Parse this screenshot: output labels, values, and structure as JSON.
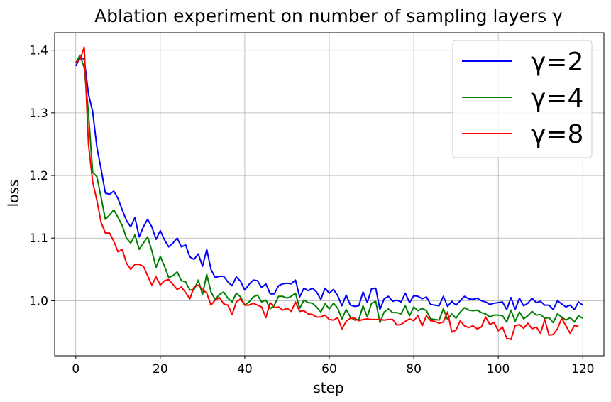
{
  "chart_data": {
    "type": "line",
    "title": "Ablation experiment on number of sampling layers γ",
    "xlabel": "step",
    "ylabel": "loss",
    "xlim": [
      -5,
      125
    ],
    "ylim": [
      0.912,
      1.428
    ],
    "xticks": [
      0,
      20,
      40,
      60,
      80,
      100,
      120
    ],
    "yticks": [
      1.0,
      1.1,
      1.2,
      1.3,
      1.4
    ],
    "xtick_labels": [
      "0",
      "20",
      "40",
      "60",
      "80",
      "100",
      "120"
    ],
    "ytick_labels": [
      "1.0",
      "1.1",
      "1.2",
      "1.3",
      "1.4"
    ],
    "grid": true,
    "legend_position": "top-right",
    "series": [
      {
        "name": "γ=2",
        "color": "#0000ff",
        "values": [
          1.375,
          1.388,
          1.386,
          1.33,
          1.302,
          1.245,
          1.21,
          1.172,
          1.17,
          1.175,
          1.163,
          1.145,
          1.128,
          1.118,
          1.133,
          1.102,
          1.118,
          1.13,
          1.118,
          1.098,
          1.112,
          1.097,
          1.086,
          1.092,
          1.1,
          1.086,
          1.089,
          1.07,
          1.066,
          1.075,
          1.055,
          1.082,
          1.05,
          1.037,
          1.039,
          1.039,
          1.03,
          1.024,
          1.038,
          1.031,
          1.017,
          1.026,
          1.033,
          1.032,
          1.021,
          1.027,
          1.011,
          1.011,
          1.024,
          1.027,
          1.028,
          1.027,
          1.033,
          1.006,
          1.02,
          1.016,
          1.02,
          1.014,
          1.002,
          1.02,
          1.012,
          1.018,
          1.008,
          0.992,
          1.009,
          0.993,
          0.991,
          0.992,
          1.014,
          0.997,
          1.019,
          1.02,
          0.986,
          1.003,
          1.007,
          0.999,
          1.001,
          0.998,
          1.012,
          0.997,
          1.008,
          1.007,
          1.003,
          1.006,
          0.994,
          0.993,
          0.992,
          1.007,
          0.991,
          0.999,
          0.993,
          1.0,
          1.007,
          1.003,
          1.002,
          1.004,
          1.0,
          0.998,
          0.994,
          0.996,
          0.997,
          0.998,
          0.986,
          1.005,
          0.986,
          1.004,
          0.992,
          0.996,
          1.004,
          0.997,
          0.999,
          0.993,
          0.993,
          0.986,
          1.0,
          0.995,
          0.99,
          0.993,
          0.986,
          0.998,
          0.993
        ]
      },
      {
        "name": "γ=4",
        "color": "#008000",
        "values": [
          1.38,
          1.392,
          1.372,
          1.3,
          1.205,
          1.198,
          1.165,
          1.13,
          1.137,
          1.145,
          1.133,
          1.12,
          1.1,
          1.092,
          1.105,
          1.082,
          1.092,
          1.102,
          1.08,
          1.053,
          1.071,
          1.055,
          1.037,
          1.04,
          1.046,
          1.032,
          1.03,
          1.017,
          1.018,
          1.033,
          1.01,
          1.042,
          1.014,
          1.002,
          1.01,
          1.014,
          1.004,
          0.998,
          1.012,
          1.006,
          0.993,
          0.998,
          1.006,
          1.009,
          0.998,
          1.001,
          0.987,
          0.993,
          1.007,
          1.007,
          1.004,
          1.007,
          1.012,
          0.988,
          1.001,
          0.997,
          0.996,
          0.99,
          0.982,
          0.995,
          0.987,
          0.996,
          0.988,
          0.971,
          0.986,
          0.974,
          0.969,
          0.97,
          0.992,
          0.974,
          0.996,
          0.999,
          0.965,
          0.982,
          0.987,
          0.981,
          0.981,
          0.979,
          0.992,
          0.976,
          0.99,
          0.984,
          0.988,
          0.984,
          0.971,
          0.97,
          0.969,
          0.987,
          0.97,
          0.979,
          0.972,
          0.982,
          0.989,
          0.985,
          0.984,
          0.985,
          0.981,
          0.979,
          0.974,
          0.977,
          0.977,
          0.976,
          0.966,
          0.985,
          0.967,
          0.982,
          0.971,
          0.976,
          0.983,
          0.977,
          0.978,
          0.972,
          0.973,
          0.965,
          0.979,
          0.974,
          0.969,
          0.973,
          0.966,
          0.976,
          0.972
        ]
      },
      {
        "name": "γ=8",
        "color": "#ff0000",
        "values": [
          1.38,
          1.385,
          1.405,
          1.25,
          1.19,
          1.16,
          1.125,
          1.108,
          1.108,
          1.095,
          1.078,
          1.082,
          1.06,
          1.05,
          1.058,
          1.058,
          1.055,
          1.04,
          1.025,
          1.038,
          1.025,
          1.032,
          1.034,
          1.026,
          1.018,
          1.022,
          1.013,
          1.003,
          1.022,
          1.025,
          1.018,
          1.012,
          0.993,
          1.001,
          1.005,
          0.995,
          0.993,
          0.978,
          0.998,
          1.003,
          0.993,
          0.993,
          0.996,
          0.993,
          0.99,
          0.973,
          0.997,
          0.989,
          0.99,
          0.985,
          0.988,
          0.983,
          0.998,
          0.983,
          0.984,
          0.979,
          0.978,
          0.974,
          0.974,
          0.977,
          0.97,
          0.969,
          0.973,
          0.955,
          0.967,
          0.972,
          0.972,
          0.968,
          0.97,
          0.971,
          0.97,
          0.97,
          0.97,
          0.969,
          0.97,
          0.97,
          0.961,
          0.962,
          0.967,
          0.971,
          0.968,
          0.976,
          0.96,
          0.976,
          0.968,
          0.967,
          0.964,
          0.966,
          0.982,
          0.95,
          0.953,
          0.968,
          0.96,
          0.957,
          0.96,
          0.955,
          0.958,
          0.974,
          0.962,
          0.965,
          0.952,
          0.958,
          0.94,
          0.938,
          0.96,
          0.962,
          0.956,
          0.964,
          0.955,
          0.958,
          0.948,
          0.97,
          0.945,
          0.946,
          0.955,
          0.972,
          0.96,
          0.948,
          0.96,
          0.959
        ]
      }
    ]
  }
}
